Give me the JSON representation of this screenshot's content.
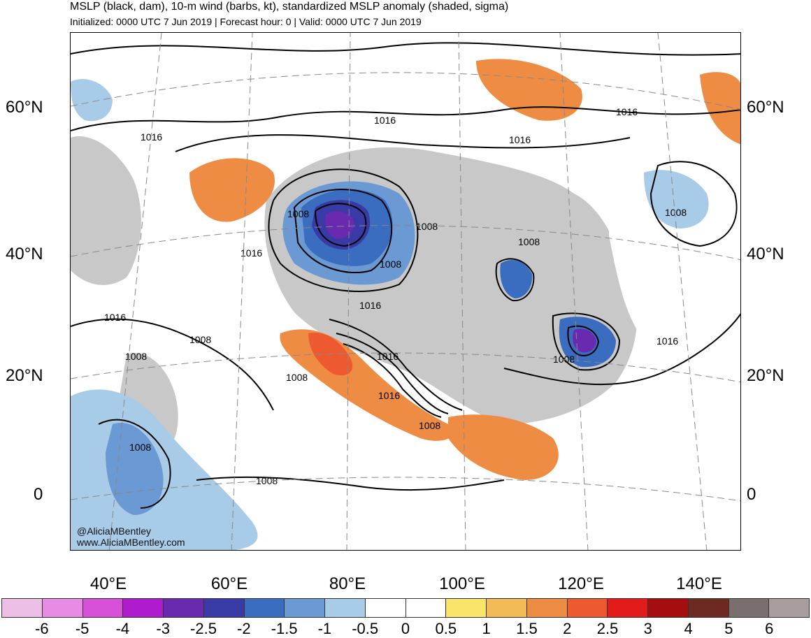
{
  "header": {
    "title": "MSLP (black, dam), 10-m wind (barbs, kt), standardized MSLP anomaly (shaded, sigma)",
    "subtitle": "Initialized: 0000 UTC 7 Jun 2019 | Forecast hour: 0 | Valid: 0000 UTC 7 Jun 2019"
  },
  "map": {
    "lat_labels": [
      "60°N",
      "40°N",
      "20°N",
      "0"
    ],
    "lon_labels": [
      "40°E",
      "60°E",
      "80°E",
      "100°E",
      "120°E",
      "140°E"
    ],
    "isobar_labels": [
      "1016",
      "1016",
      "1016",
      "1016",
      "1016",
      "1016",
      "1016",
      "1016",
      "1016",
      "1016",
      "1008",
      "1008",
      "1008",
      "1008",
      "1008",
      "1008",
      "1008",
      "1008",
      "1008",
      "1008"
    ],
    "watermark": [
      "@AliciaMBentley",
      "www.AliciaMBentley.com"
    ]
  },
  "colorbar": {
    "colors": [
      "#ebbfe6",
      "#e88be4",
      "#d84fd9",
      "#ae1ccd",
      "#6a2ab0",
      "#3a3aa6",
      "#3a6cc0",
      "#6a99d3",
      "#a8cbe8",
      "#ffffff",
      "#ffffff",
      "#fae56a",
      "#f3bb57",
      "#ef8c44",
      "#ee5a30",
      "#e41b1b",
      "#a50e0e",
      "#6e2a22",
      "#7a6e6e",
      "#a89c9c"
    ],
    "ticks": [
      "-6",
      "-5",
      "-4",
      "-3",
      "-2.5",
      "-2",
      "-1.5",
      "-1",
      "-0.5",
      "0",
      "0.5",
      "1",
      "1.5",
      "2",
      "2.5",
      "3",
      "4",
      "5",
      "6"
    ]
  }
}
